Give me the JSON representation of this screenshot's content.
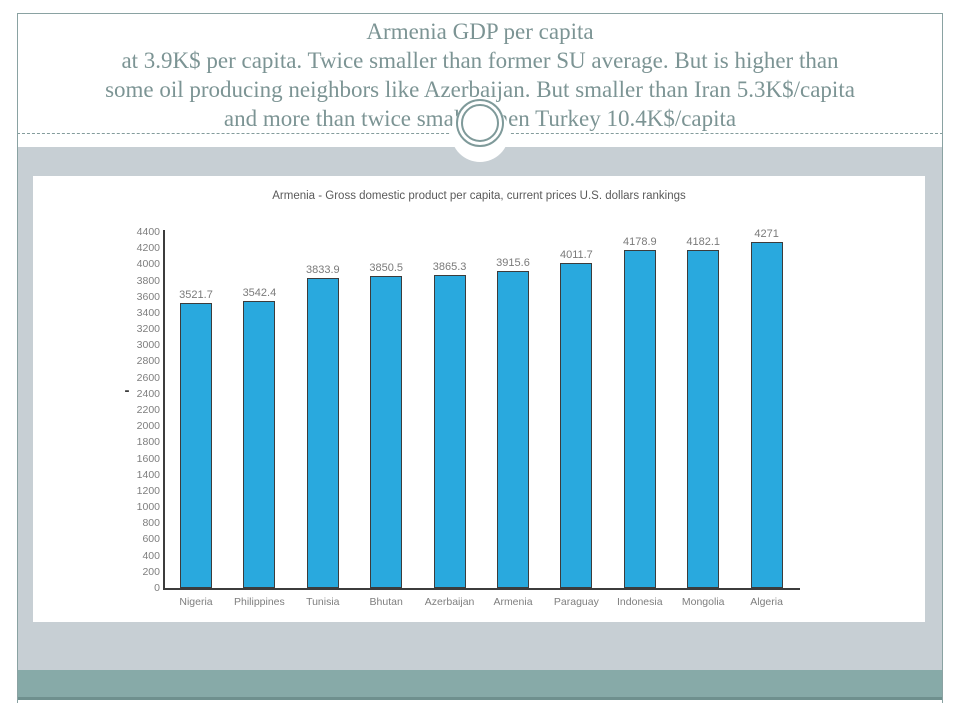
{
  "slide": {
    "title_lines": [
      "Armenia GDP per capita",
      "at 3.9K$ per capita. Twice smaller than former SU average. But is higher than",
      "some oil producing neighbors like Azerbaijan. But smaller than Iran 5.3K$/capita",
      "and more than twice smaller then Turkey 10.4K$/capita"
    ],
    "accent_colors": {
      "title_text": "#7c9494",
      "frame_border": "#8aa2a2",
      "band_light": "#c7cfd4",
      "band_footer": "#87aaa8",
      "ornament_ring": "#7f9a9a"
    }
  },
  "chart_data": {
    "type": "bar",
    "title": "Armenia - Gross domestic product per capita, current prices U.S. dollars rankings",
    "categories": [
      "Nigeria",
      "Philippines",
      "Tunisia",
      "Bhutan",
      "Azerbaijan",
      "Armenia",
      "Paraguay",
      "Indonesia",
      "Mongolia",
      "Algeria"
    ],
    "values": [
      3521.7,
      3542.4,
      3833.9,
      3850.5,
      3865.3,
      3915.6,
      4011.7,
      4178.9,
      4182.1,
      4271
    ],
    "xlabel": "",
    "ylabel": "-",
    "ylim": [
      0,
      4400
    ],
    "ytick_step": 200,
    "grid": false,
    "legend_position": "none",
    "bar_color": "#29a9de",
    "bar_border_color": "#3c3c3c",
    "axis_color": "#3c3c3c",
    "label_color": "#7a7a7a"
  }
}
